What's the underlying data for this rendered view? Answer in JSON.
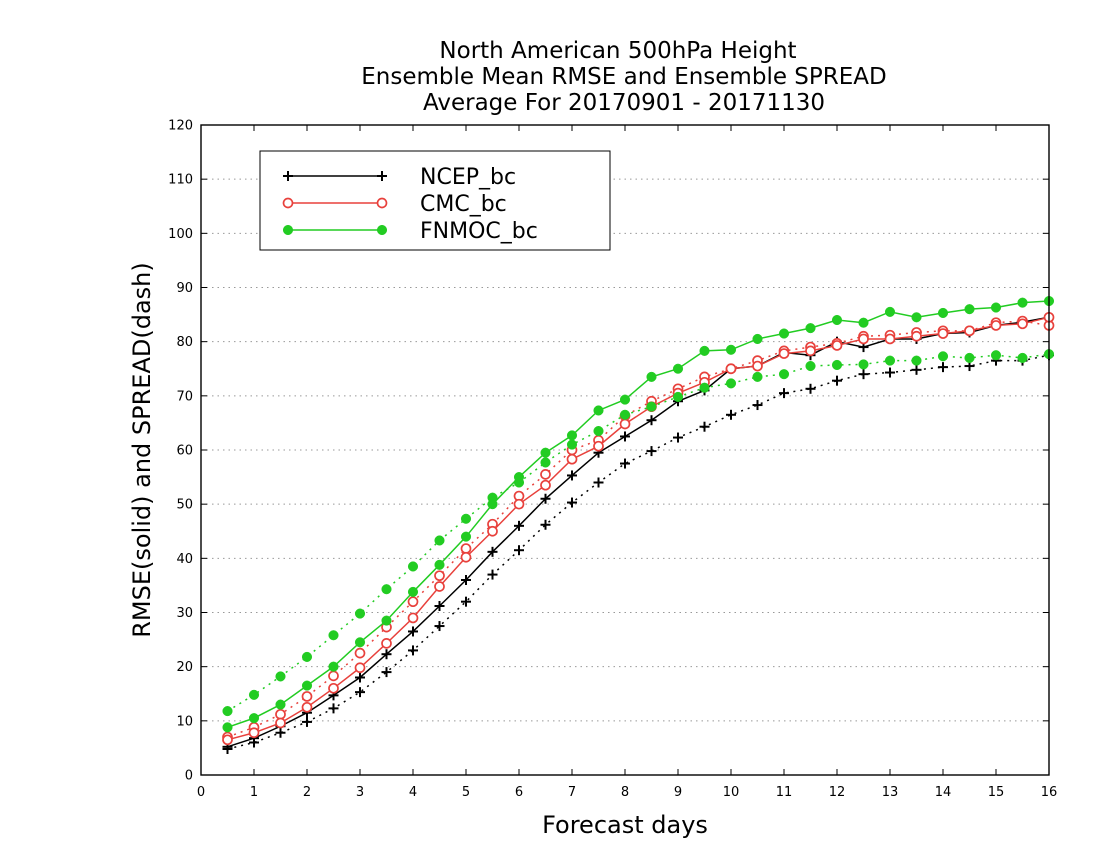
{
  "chart_data": {
    "type": "line",
    "title": [
      "North American 500hPa Height",
      "Ensemble Mean RMSE and Ensemble SPREAD",
      "Average For 20170901 - 20171130"
    ],
    "xlabel": "Forecast days",
    "ylabel": "RMSE(solid) and SPREAD(dash)",
    "xlim": [
      0,
      16
    ],
    "ylim": [
      0,
      120
    ],
    "xticks": [
      0,
      1,
      2,
      3,
      4,
      5,
      6,
      7,
      8,
      9,
      10,
      11,
      12,
      13,
      14,
      15,
      16
    ],
    "yticks": [
      0,
      10,
      20,
      30,
      40,
      50,
      60,
      70,
      80,
      90,
      100,
      110,
      120
    ],
    "grid": "dotted horizontal",
    "legend_position": "top-left",
    "x": [
      0.5,
      1,
      1.5,
      2,
      2.5,
      3,
      3.5,
      4,
      4.5,
      5,
      5.5,
      6,
      6.5,
      7,
      7.5,
      8,
      8.5,
      9,
      9.5,
      10,
      10.5,
      11,
      11.5,
      12,
      12.5,
      13,
      13.5,
      14,
      14.5,
      15,
      15.5,
      16
    ],
    "series": [
      {
        "name": "NCEP_bc",
        "color": "#000000",
        "marker": "plus",
        "rmse": [
          5.2,
          6.8,
          9.0,
          11.5,
          14.7,
          18.0,
          22.3,
          26.5,
          31.2,
          36.0,
          41.2,
          46.0,
          51.0,
          55.3,
          59.5,
          62.5,
          65.5,
          69.0,
          71.0,
          75.0,
          75.5,
          78.0,
          77.5,
          80.0,
          79.0,
          80.5,
          80.5,
          81.5,
          81.7,
          83.0,
          83.6,
          84.5
        ],
        "spread": [
          4.8,
          6.0,
          7.8,
          9.8,
          12.3,
          15.3,
          19.0,
          23.0,
          27.5,
          32.0,
          37.0,
          41.5,
          46.2,
          50.3,
          54.0,
          57.5,
          59.8,
          62.3,
          64.3,
          66.5,
          68.3,
          70.5,
          71.3,
          72.8,
          74.0,
          74.3,
          74.8,
          75.3,
          75.5,
          76.5,
          76.5,
          77.5
        ]
      },
      {
        "name": "CMC_bc",
        "color": "#e8413c",
        "marker": "open-circle",
        "rmse": [
          6.5,
          7.8,
          9.6,
          12.5,
          16.0,
          19.8,
          24.3,
          29.0,
          34.8,
          40.2,
          45.0,
          50.0,
          53.5,
          58.3,
          60.7,
          64.8,
          68.0,
          70.5,
          72.5,
          75.0,
          75.5,
          77.8,
          78.3,
          79.3,
          80.5,
          80.5,
          81.0,
          81.5,
          82.0,
          83.0,
          83.3,
          84.5
        ],
        "spread": [
          7.0,
          8.8,
          11.2,
          14.5,
          18.3,
          22.5,
          27.3,
          32.0,
          36.8,
          41.8,
          46.3,
          51.5,
          55.5,
          60.0,
          61.8,
          66.3,
          69.0,
          71.3,
          73.5,
          75.0,
          76.5,
          78.3,
          79.0,
          79.7,
          81.0,
          81.2,
          81.7,
          82.0,
          82.0,
          83.5,
          83.8,
          83.0
        ]
      },
      {
        "name": "FNMOC_bc",
        "color": "#22cc22",
        "marker": "filled-circle",
        "rmse": [
          8.8,
          10.5,
          13.0,
          16.5,
          20.0,
          24.5,
          28.5,
          33.8,
          38.8,
          44.0,
          50.0,
          55.0,
          59.5,
          62.7,
          67.3,
          69.3,
          73.5,
          75.0,
          78.3,
          78.5,
          80.5,
          81.5,
          82.5,
          84.0,
          83.5,
          85.5,
          84.5,
          85.3,
          86.0,
          86.3,
          87.2,
          87.5
        ],
        "spread": [
          11.8,
          14.8,
          18.2,
          21.8,
          25.8,
          29.8,
          34.3,
          38.5,
          43.3,
          47.3,
          51.2,
          54.0,
          57.7,
          61.0,
          63.5,
          66.5,
          68.0,
          69.8,
          71.5,
          72.3,
          73.5,
          74.0,
          75.5,
          75.7,
          75.8,
          76.5,
          76.5,
          77.3,
          77.0,
          77.5,
          77.0,
          77.7
        ]
      }
    ]
  }
}
